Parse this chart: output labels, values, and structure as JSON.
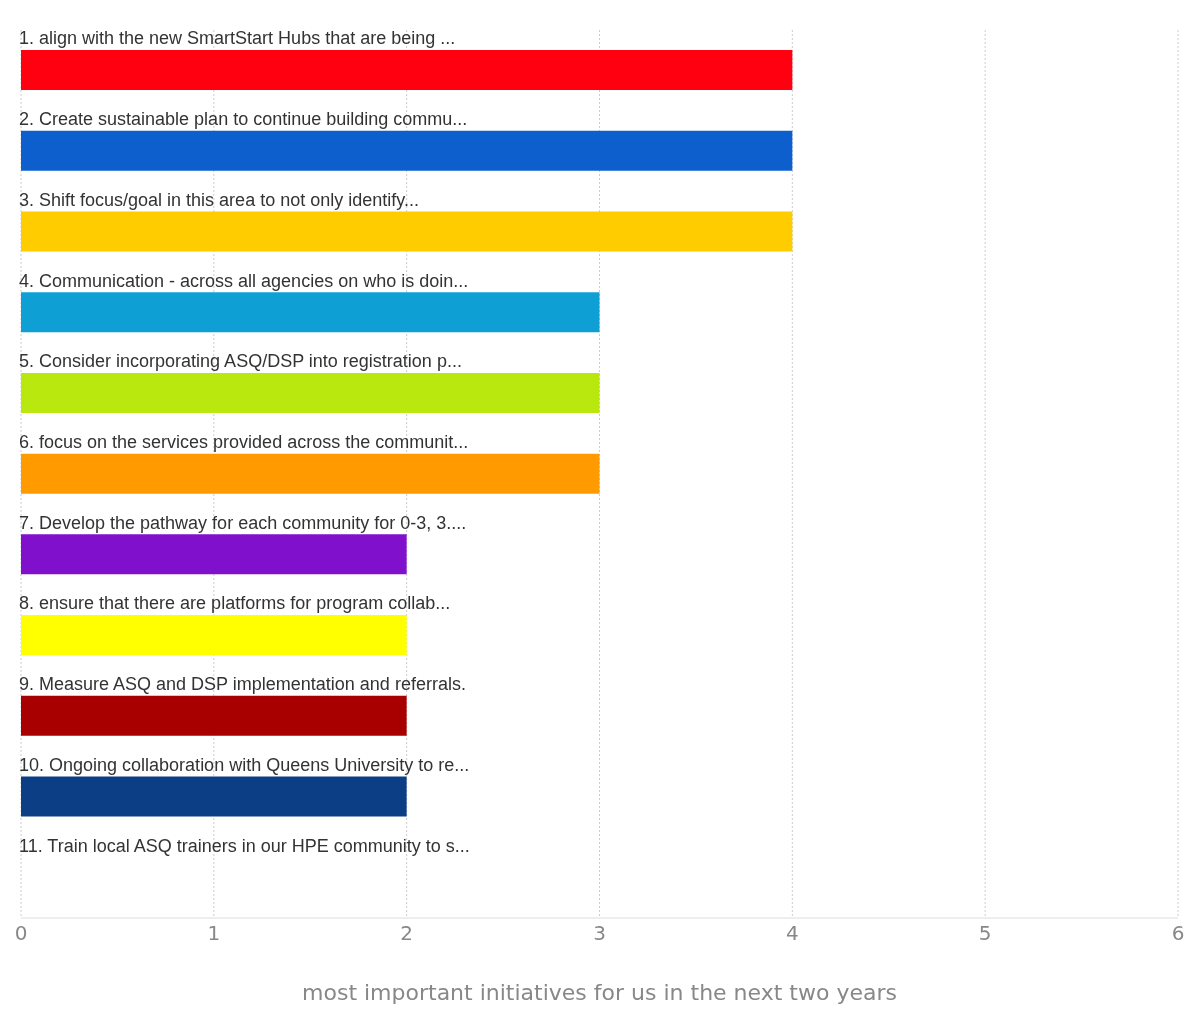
{
  "chart_data": {
    "type": "bar",
    "orientation": "horizontal",
    "xlabel": "most important initiatives for us in the next two years",
    "categories": [
      "1. align with the new SmartStart Hubs that are being ...",
      "2. Create sustainable plan to continue building commu...",
      "3. Shift focus/goal in this area to not only identify...",
      "4. Communication - across all agencies on who is doin...",
      "5. Consider incorporating ASQ/DSP into registration p...",
      "6. focus on the services provided across the communit...",
      "7. Develop the pathway for each community for 0-3, 3....",
      "8. ensure that there are platforms for program collab...",
      "9. Measure ASQ and DSP implementation and referrals.",
      "10. Ongoing collaboration with Queens University to re...",
      "11. Train local ASQ trainers in our HPE community to s..."
    ],
    "values": [
      4,
      4,
      4,
      3,
      3,
      3,
      2,
      2,
      2,
      2,
      0
    ],
    "colors": [
      "#ff0010",
      "#0e5fce",
      "#ffcc00",
      "#0ea0d4",
      "#b8e80e",
      "#ff9a00",
      "#8010cc",
      "#ffff00",
      "#a80000",
      "#0c3e86",
      "#888888"
    ],
    "xlim": [
      0,
      6
    ],
    "xticks": [
      0,
      1,
      2,
      3,
      4,
      5,
      6
    ],
    "grid": "x"
  }
}
